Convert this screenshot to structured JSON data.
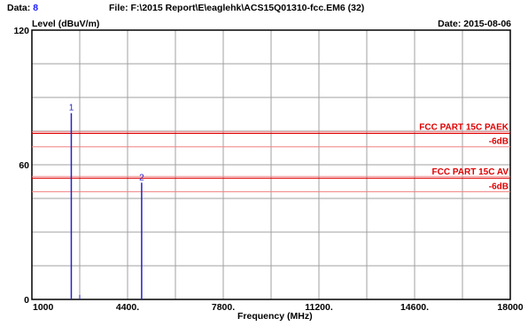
{
  "header": {
    "data_label": "Data:",
    "data_value": "8",
    "file_text": "File: F:\\2015 Report\\E\\eaglehk\\ACS15Q01310-fcc.EM6  (32)",
    "date_text": "Date: 2015-08-06"
  },
  "colors": {
    "limit": "#dd0000",
    "margin": "#f08080",
    "marker": "#2222cc",
    "grid": "#a0a0a0",
    "frame": "#000000"
  },
  "chart_data": {
    "type": "line",
    "ylabel": "Level (dBuV/m)",
    "xlabel": "Frequency (MHz)",
    "xlim": [
      1000,
      18000
    ],
    "ylim": [
      0,
      120
    ],
    "x_tick_labels": [
      {
        "value": 1000,
        "label": "1000"
      },
      {
        "value": 4400,
        "label": "4400."
      },
      {
        "value": 7800,
        "label": "7800."
      },
      {
        "value": 11200,
        "label": "11200."
      },
      {
        "value": 14600,
        "label": "14600."
      },
      {
        "value": 18000,
        "label": "18000"
      }
    ],
    "y_tick_labels": [
      {
        "value": 0,
        "label": "0"
      },
      {
        "value": 60,
        "label": "60"
      },
      {
        "value": 120,
        "label": "120"
      }
    ],
    "x_gridlines": [
      1000,
      2700,
      4400,
      6100,
      7800,
      9500,
      11200,
      12900,
      14600,
      16300,
      18000
    ],
    "y_gridlines": [
      0,
      15,
      30,
      45,
      60,
      75,
      90,
      105,
      120
    ],
    "limit_lines": [
      {
        "name": "FCC PART 15C PAEK",
        "value": 74,
        "margin_label": "-6dB",
        "margin_value": 68
      },
      {
        "name": "FCC PART 15C AV",
        "value": 54,
        "margin_label": "-6dB",
        "margin_value": 48
      }
    ],
    "markers": [
      {
        "label": "1",
        "x": 2400,
        "y": 83
      },
      {
        "label": "2",
        "x": 4900,
        "y": 52
      }
    ],
    "extra_spikes": [
      {
        "x": 2700,
        "y": 2
      }
    ]
  }
}
